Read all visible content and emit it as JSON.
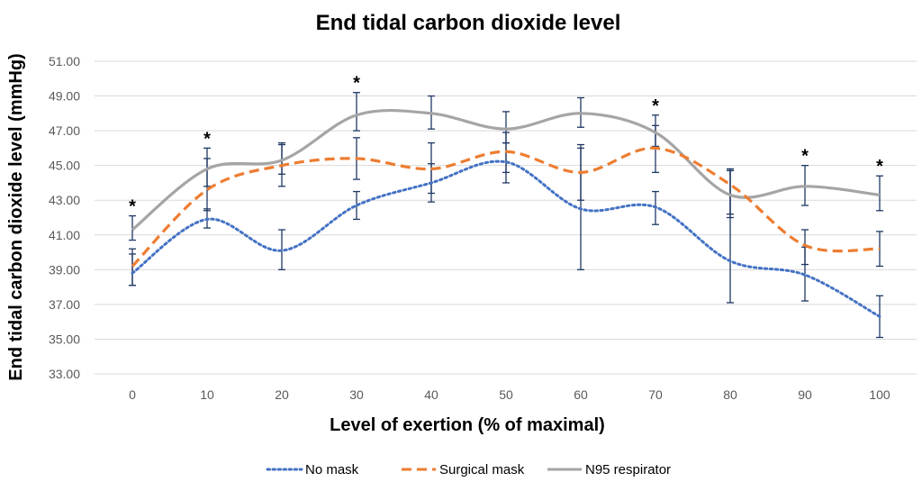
{
  "chart_data": {
    "type": "line",
    "title": "End tidal carbon dioxide level",
    "xlabel": "Level of exertion (% of maximal)",
    "ylabel": "End tidal carbon dioxide level (mmHg)",
    "x": [
      0,
      10,
      20,
      30,
      40,
      50,
      60,
      70,
      80,
      90,
      100
    ],
    "x_tick_labels": [
      "0",
      "10",
      "20",
      "30",
      "40",
      "50",
      "60",
      "70",
      "80",
      "90",
      "100"
    ],
    "ylim": [
      33,
      51
    ],
    "y_ticks": [
      33,
      35,
      37,
      39,
      41,
      43,
      45,
      47,
      49,
      51
    ],
    "y_tick_labels": [
      "33.00",
      "35.00",
      "37.00",
      "39.00",
      "41.00",
      "43.00",
      "45.00",
      "47.00",
      "49.00",
      "51.00"
    ],
    "grid": true,
    "legend_position": "bottom",
    "series": [
      {
        "name": "No mask",
        "color": "#4472c4",
        "style": "dotted",
        "values": [
          38.8,
          41.9,
          40.1,
          42.7,
          44.0,
          45.2,
          42.5,
          42.6,
          39.5,
          38.7,
          36.3
        ],
        "err_low": [
          38.1,
          41.4,
          39.0,
          41.9,
          42.9,
          44.0,
          39.0,
          41.6,
          37.1,
          37.2,
          35.1
        ],
        "err_high": [
          39.9,
          42.5,
          41.3,
          43.5,
          45.1,
          46.3,
          46.2,
          43.5,
          44.7,
          40.3,
          37.5
        ]
      },
      {
        "name": "Surgical mask",
        "color": "#ed7d31",
        "style": "dashed",
        "values": [
          39.2,
          43.6,
          45.0,
          45.4,
          44.8,
          45.8,
          44.6,
          46.0,
          43.9,
          40.4,
          40.2
        ],
        "err_low": [
          38.1,
          42.4,
          43.8,
          44.2,
          43.4,
          44.6,
          43.0,
          44.6,
          42.0,
          39.3,
          39.2
        ],
        "err_high": [
          40.2,
          45.4,
          46.2,
          46.6,
          46.3,
          46.9,
          46.0,
          47.3,
          44.8,
          41.3,
          41.2
        ]
      },
      {
        "name": "N95 respirator",
        "color": "#a5a5a5",
        "style": "solid",
        "values": [
          41.3,
          44.8,
          45.3,
          47.9,
          48.0,
          47.1,
          48.0,
          46.9,
          43.3,
          43.8,
          43.3
        ],
        "err_low": [
          40.7,
          43.8,
          44.5,
          47.0,
          47.1,
          46.3,
          47.2,
          46.1,
          42.2,
          42.7,
          42.4
        ],
        "err_high": [
          42.1,
          46.0,
          46.3,
          49.2,
          49.0,
          48.1,
          48.9,
          47.9,
          44.8,
          45.0,
          44.4
        ]
      }
    ],
    "annotations": [
      {
        "text": "*",
        "x": 0,
        "y": 42.1
      },
      {
        "text": "*",
        "x": 10,
        "y": 46.0
      },
      {
        "text": "*",
        "x": 30,
        "y": 49.2
      },
      {
        "text": "*",
        "x": 70,
        "y": 47.9
      },
      {
        "text": "*",
        "x": 90,
        "y": 45.0
      },
      {
        "text": "*",
        "x": 100,
        "y": 44.4
      }
    ]
  }
}
